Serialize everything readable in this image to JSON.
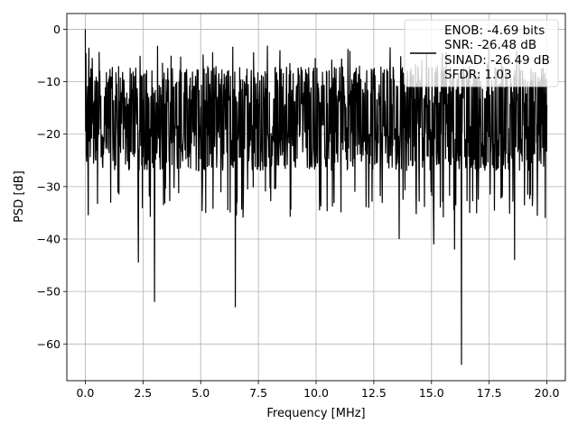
{
  "chart_data": {
    "type": "line",
    "xlabel": "Frequency [MHz]",
    "ylabel": "PSD [dB]",
    "xlim": [
      -0.8,
      20.8
    ],
    "ylim": [
      -67,
      3
    ],
    "xticks": [
      0.0,
      2.5,
      5.0,
      7.5,
      10.0,
      12.5,
      15.0,
      17.5,
      20.0
    ],
    "xtick_labels": [
      "0.0",
      "2.5",
      "5.0",
      "7.5",
      "10.0",
      "12.5",
      "15.0",
      "17.5",
      "20.0"
    ],
    "yticks": [
      0,
      -10,
      -20,
      -30,
      -40,
      -50,
      -60
    ],
    "ytick_labels": [
      "0",
      "−10",
      "−20",
      "−30",
      "−40",
      "−50",
      "−60"
    ],
    "grid": true,
    "legend_position": "top-right",
    "legend_lines": [
      "ENOB: -4.69 bits",
      "SNR: -26.48 dB",
      "SINAD: -26.49 dB",
      "SFDR: 1.03"
    ],
    "series_color": "#000000",
    "x_range": [
      0.0,
      20.0
    ],
    "noise_band_upper": -9,
    "noise_band_lower": -27,
    "notable_points": [
      {
        "x": 0.0,
        "y": 0.0
      },
      {
        "x": 2.3,
        "y": -44.5
      },
      {
        "x": 3.0,
        "y": -52.0
      },
      {
        "x": 6.5,
        "y": -53.0
      },
      {
        "x": 13.6,
        "y": -40.0
      },
      {
        "x": 15.1,
        "y": -41.0
      },
      {
        "x": 16.0,
        "y": -42.0
      },
      {
        "x": 16.3,
        "y": -64.0
      },
      {
        "x": 18.6,
        "y": -44.0
      }
    ]
  }
}
